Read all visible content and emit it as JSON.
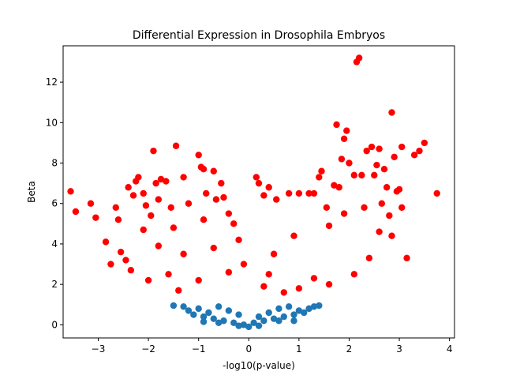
{
  "chart_data": {
    "type": "scatter",
    "title": "Differential Expression in Drosophila Embryos",
    "xlabel": "-log10(p-value)",
    "ylabel": "Beta",
    "xlim": [
      -3.7,
      4.1
    ],
    "ylim": [
      -0.65,
      13.8
    ],
    "xticks": [
      -3,
      -2,
      -1,
      0,
      1,
      2,
      3,
      4
    ],
    "yticks": [
      0,
      2,
      4,
      6,
      8,
      10,
      12
    ],
    "xtick_labels": [
      "−3",
      "−2",
      "−1",
      "0",
      "1",
      "2",
      "3",
      "4"
    ],
    "ytick_labels": [
      "0",
      "2",
      "4",
      "6",
      "8",
      "10",
      "12"
    ],
    "grid": false,
    "threshold_beta": 1.0,
    "series": [
      {
        "color": "#1f77b4",
        "description_points": "beta below threshold",
        "points": [
          [
            -1.3,
            0.9
          ],
          [
            -1.2,
            0.7
          ],
          [
            -1.1,
            0.5
          ],
          [
            -1.0,
            0.8
          ],
          [
            -0.9,
            0.4
          ],
          [
            -0.8,
            0.6
          ],
          [
            -0.7,
            0.3
          ],
          [
            -0.6,
            0.9
          ],
          [
            -0.5,
            0.2
          ],
          [
            -0.4,
            0.7
          ],
          [
            -0.3,
            0.1
          ],
          [
            -0.2,
            0.5
          ],
          [
            -0.1,
            0.0
          ],
          [
            0.0,
            -0.1
          ],
          [
            0.1,
            0.1
          ],
          [
            0.2,
            0.4
          ],
          [
            0.3,
            0.2
          ],
          [
            0.4,
            0.6
          ],
          [
            0.5,
            0.3
          ],
          [
            0.6,
            0.8
          ],
          [
            0.7,
            0.4
          ],
          [
            0.8,
            0.9
          ],
          [
            0.9,
            0.5
          ],
          [
            1.0,
            0.7
          ],
          [
            1.1,
            0.6
          ],
          [
            1.2,
            0.8
          ],
          [
            1.3,
            0.9
          ],
          [
            -0.6,
            0.1
          ],
          [
            0.6,
            0.2
          ],
          [
            -1.5,
            0.95
          ],
          [
            1.4,
            0.95
          ],
          [
            -0.2,
            -0.05
          ],
          [
            0.2,
            -0.05
          ],
          [
            -0.9,
            0.15
          ],
          [
            0.9,
            0.2
          ]
        ]
      },
      {
        "color": "#ff0000",
        "description_points": "beta above threshold",
        "points": [
          [
            -3.55,
            6.6
          ],
          [
            -3.45,
            5.6
          ],
          [
            -3.15,
            6.0
          ],
          [
            -3.05,
            5.3
          ],
          [
            -2.85,
            4.1
          ],
          [
            -2.75,
            3.0
          ],
          [
            -2.65,
            5.8
          ],
          [
            -2.6,
            5.2
          ],
          [
            -2.55,
            3.6
          ],
          [
            -2.45,
            3.2
          ],
          [
            -2.4,
            6.8
          ],
          [
            -2.35,
            2.7
          ],
          [
            -2.3,
            6.4
          ],
          [
            -2.25,
            7.1
          ],
          [
            -2.2,
            7.3
          ],
          [
            -2.1,
            6.5
          ],
          [
            -2.05,
            5.9
          ],
          [
            -1.95,
            5.4
          ],
          [
            -1.9,
            8.6
          ],
          [
            -1.85,
            7.0
          ],
          [
            -1.8,
            6.2
          ],
          [
            -1.75,
            7.2
          ],
          [
            -1.65,
            7.1
          ],
          [
            -1.55,
            5.8
          ],
          [
            -1.45,
            8.85
          ],
          [
            -1.3,
            7.3
          ],
          [
            -1.2,
            6.0
          ],
          [
            -1.0,
            8.4
          ],
          [
            -0.95,
            7.8
          ],
          [
            -0.9,
            7.7
          ],
          [
            -0.85,
            6.5
          ],
          [
            -0.7,
            7.6
          ],
          [
            -0.65,
            6.2
          ],
          [
            -0.55,
            7.0
          ],
          [
            -0.5,
            6.3
          ],
          [
            -0.4,
            5.5
          ],
          [
            -0.3,
            5.0
          ],
          [
            -0.2,
            4.2
          ],
          [
            -0.1,
            3.0
          ],
          [
            0.15,
            7.3
          ],
          [
            0.2,
            7.0
          ],
          [
            0.3,
            6.4
          ],
          [
            0.4,
            6.8
          ],
          [
            0.55,
            6.2
          ],
          [
            0.8,
            6.5
          ],
          [
            1.0,
            6.5
          ],
          [
            1.2,
            6.5
          ],
          [
            1.3,
            6.5
          ],
          [
            1.4,
            7.3
          ],
          [
            1.45,
            7.6
          ],
          [
            1.55,
            5.8
          ],
          [
            1.7,
            6.9
          ],
          [
            1.75,
            9.9
          ],
          [
            1.8,
            6.8
          ],
          [
            1.85,
            8.2
          ],
          [
            1.9,
            9.2
          ],
          [
            1.95,
            9.6
          ],
          [
            2.0,
            8.0
          ],
          [
            2.1,
            7.4
          ],
          [
            2.15,
            13.0
          ],
          [
            2.2,
            13.2
          ],
          [
            2.25,
            7.4
          ],
          [
            2.3,
            5.8
          ],
          [
            2.35,
            8.6
          ],
          [
            2.45,
            8.8
          ],
          [
            2.5,
            7.4
          ],
          [
            2.55,
            7.9
          ],
          [
            2.6,
            8.7
          ],
          [
            2.65,
            6.0
          ],
          [
            2.7,
            7.7
          ],
          [
            2.75,
            6.8
          ],
          [
            2.8,
            5.4
          ],
          [
            2.85,
            10.5
          ],
          [
            2.9,
            8.3
          ],
          [
            2.95,
            6.6
          ],
          [
            3.0,
            6.7
          ],
          [
            3.05,
            8.8
          ],
          [
            3.05,
            5.8
          ],
          [
            3.15,
            3.3
          ],
          [
            3.3,
            8.4
          ],
          [
            3.4,
            8.6
          ],
          [
            3.5,
            9.0
          ],
          [
            3.75,
            6.5
          ],
          [
            2.6,
            4.6
          ],
          [
            2.85,
            4.4
          ],
          [
            2.4,
            3.3
          ],
          [
            2.1,
            2.5
          ],
          [
            1.6,
            2.0
          ],
          [
            1.3,
            2.3
          ],
          [
            1.0,
            1.8
          ],
          [
            0.7,
            1.6
          ],
          [
            0.5,
            3.5
          ],
          [
            0.4,
            2.5
          ],
          [
            0.3,
            1.9
          ],
          [
            -0.4,
            2.6
          ],
          [
            -0.7,
            3.8
          ],
          [
            -1.0,
            2.2
          ],
          [
            -1.3,
            3.5
          ],
          [
            -1.6,
            2.5
          ],
          [
            -1.8,
            3.9
          ],
          [
            -2.0,
            2.2
          ],
          [
            -1.4,
            1.7
          ],
          [
            0.9,
            4.4
          ],
          [
            1.6,
            4.9
          ],
          [
            1.9,
            5.5
          ],
          [
            -1.5,
            4.8
          ],
          [
            -2.1,
            4.7
          ],
          [
            -0.9,
            5.2
          ]
        ]
      }
    ]
  }
}
